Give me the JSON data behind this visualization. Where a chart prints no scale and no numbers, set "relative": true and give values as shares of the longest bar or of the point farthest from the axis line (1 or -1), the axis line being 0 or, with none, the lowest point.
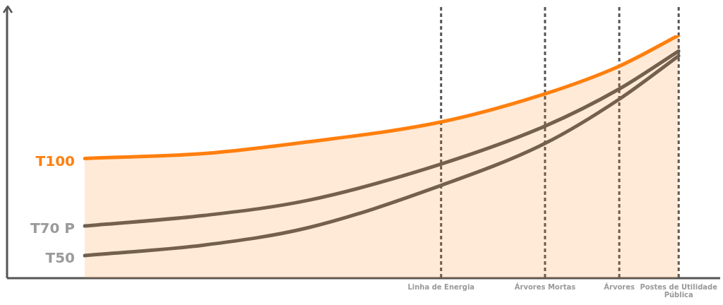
{
  "chart_data": {
    "type": "line",
    "relative": true,
    "categories": [
      null,
      null,
      null,
      null,
      null,
      null,
      null,
      null,
      null,
      null,
      null,
      null,
      null,
      null,
      null,
      null,
      null,
      null,
      null,
      null,
      null,
      null,
      null,
      null,
      "Linha de Energia",
      null,
      null,
      null,
      null,
      null,
      null,
      "Árvores Mortas",
      null,
      null,
      null,
      null,
      "Árvores",
      null,
      null,
      null,
      "Postes de Utilidade Pública"
    ],
    "series": [
      {
        "name": "T100",
        "type": "area",
        "color": "#ff7f0e",
        "values": [
          0.493,
          null,
          null,
          null,
          null,
          null,
          null,
          null,
          0.513,
          null,
          null,
          null,
          null,
          null,
          null,
          0.561,
          null,
          null,
          null,
          null,
          null,
          null,
          null,
          null,
          0.643,
          null,
          null,
          null,
          null,
          null,
          null,
          0.759,
          null,
          null,
          null,
          null,
          0.873,
          null,
          null,
          null,
          1
        ]
      },
      {
        "name": "T70 P",
        "type": "line",
        "color": "#5b5b5b",
        "values": [
          0.215,
          null,
          null,
          null,
          null,
          null,
          null,
          null,
          0.258,
          null,
          null,
          null,
          null,
          null,
          null,
          0.32,
          null,
          null,
          null,
          null,
          null,
          null,
          null,
          null,
          0.47,
          null,
          null,
          null,
          null,
          null,
          null,
          0.626,
          null,
          null,
          null,
          null,
          0.779,
          null,
          null,
          null,
          0.935
        ]
      },
      {
        "name": "T50",
        "type": "line",
        "color": "#5b5b5b",
        "values": [
          0.093,
          null,
          null,
          null,
          null,
          null,
          null,
          null,
          0.136,
          null,
          null,
          null,
          null,
          null,
          null,
          0.207,
          null,
          null,
          null,
          null,
          null,
          null,
          null,
          null,
          0.382,
          null,
          null,
          null,
          null,
          null,
          null,
          0.555,
          null,
          null,
          null,
          null,
          0.737,
          null,
          null,
          null,
          0.915
        ]
      }
    ],
    "ref_lines": [
      {
        "axis": "x",
        "value": "Linha de Energia",
        "color": "#555555",
        "line_style": "dashed"
      },
      {
        "axis": "x",
        "value": "Árvores Mortas",
        "color": "#555555",
        "line_style": "dashed"
      },
      {
        "axis": "x",
        "value": "Árvores",
        "color": "#555555",
        "line_style": "dashed"
      },
      {
        "axis": "x",
        "value": "Postes de Utilidade Pública",
        "color": "#555555",
        "line_style": "dashed"
      }
    ],
    "grid": false,
    "legend": false,
    "marker": "none",
    "line_style": "solid"
  }
}
